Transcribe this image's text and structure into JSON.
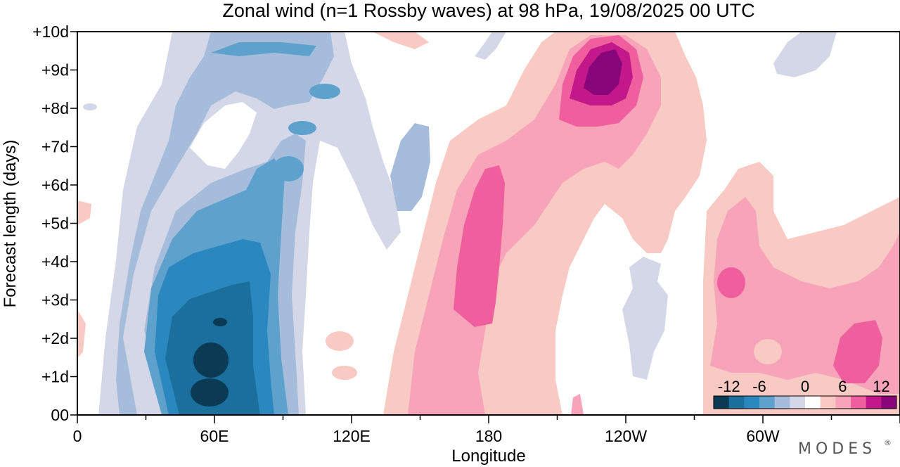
{
  "chart_data": {
    "type": "heatmap",
    "title": "Zonal wind (n=1 Rossby waves) at 98 hPa,  19/08/2025  00 UTC",
    "xlabel": "Longitude",
    "ylabel": "Forecast length (days)",
    "x_ticks": [
      "0",
      "60E",
      "120E",
      "180",
      "120W",
      "60W"
    ],
    "y_ticks": [
      "00",
      "+1d",
      "+2d",
      "+3d",
      "+4d",
      "+5d",
      "+6d",
      "+7d",
      "+8d",
      "+9d",
      "+10d"
    ],
    "xlim": [
      0,
      360
    ],
    "ylim": [
      0,
      10
    ],
    "colorbar": {
      "labels": [
        "-12",
        "-6",
        "0",
        "6",
        "12"
      ],
      "levels": [
        -15,
        -12,
        -9,
        -6,
        -3,
        -1,
        1,
        3,
        6,
        9,
        12,
        15
      ],
      "colors": [
        "#0b3a55",
        "#1a6f9c",
        "#2a88bf",
        "#5ea1cc",
        "#a6bcdb",
        "#d4d7e8",
        "#ffffff",
        "#f9c9c3",
        "#f7a3ba",
        "#ef5f9d",
        "#c2188a",
        "#88067a"
      ]
    },
    "field_points": [
      {
        "lon": 60,
        "day": 1.0,
        "value": -13
      },
      {
        "lon": 60,
        "day": 1.8,
        "value": -13
      },
      {
        "lon": 62,
        "day": 2.5,
        "value": -12
      },
      {
        "lon": 55,
        "day": 3.5,
        "value": -9
      },
      {
        "lon": 75,
        "day": 4.5,
        "value": -6
      },
      {
        "lon": 90,
        "day": 6.3,
        "value": -5
      },
      {
        "lon": 110,
        "day": 9.5,
        "value": -5
      },
      {
        "lon": 140,
        "day": 7.0,
        "value": -3
      },
      {
        "lon": 180,
        "day": 4.0,
        "value": 6
      },
      {
        "lon": 185,
        "day": 6.0,
        "value": 5
      },
      {
        "lon": 235,
        "day": 9.0,
        "value": 13
      },
      {
        "lon": 235,
        "day": 8.0,
        "value": 9
      },
      {
        "lon": 225,
        "day": 5.0,
        "value": 2
      },
      {
        "lon": 250,
        "day": 3.0,
        "value": -2
      },
      {
        "lon": 285,
        "day": 3.5,
        "value": 6
      },
      {
        "lon": 345,
        "day": 1.8,
        "value": 6
      },
      {
        "lon": 330,
        "day": 9.5,
        "value": -2
      },
      {
        "lon": 25,
        "day": 7.5,
        "value": -2
      }
    ]
  },
  "branding": {
    "logo_text": "MODES",
    "trademark": "®"
  }
}
